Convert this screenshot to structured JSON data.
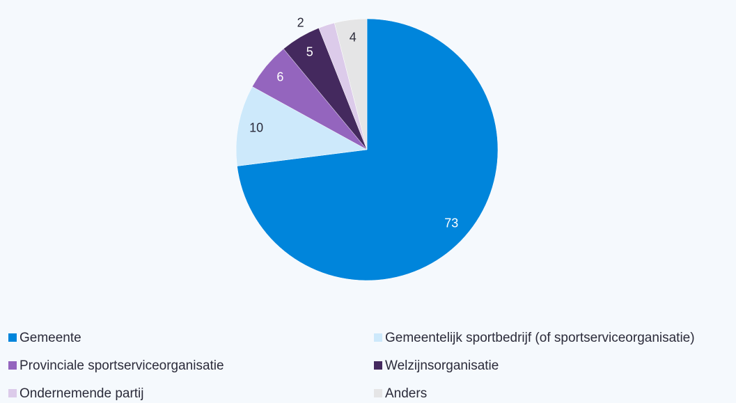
{
  "chart_data": {
    "type": "pie",
    "categories": [
      "Gemeente",
      "Gemeentelijk sportbedrijf (of sportserviceorganisatie)",
      "Provinciale sportserviceorganisatie",
      "Welzijnsorganisatie",
      "Ondernemende partij",
      "Anders"
    ],
    "values": [
      73,
      10,
      6,
      5,
      2,
      4
    ],
    "colors": [
      "#0085db",
      "#cde9fb",
      "#9465be",
      "#44295e",
      "#dccbea",
      "#e5e5e6"
    ],
    "legend": "bottom"
  }
}
